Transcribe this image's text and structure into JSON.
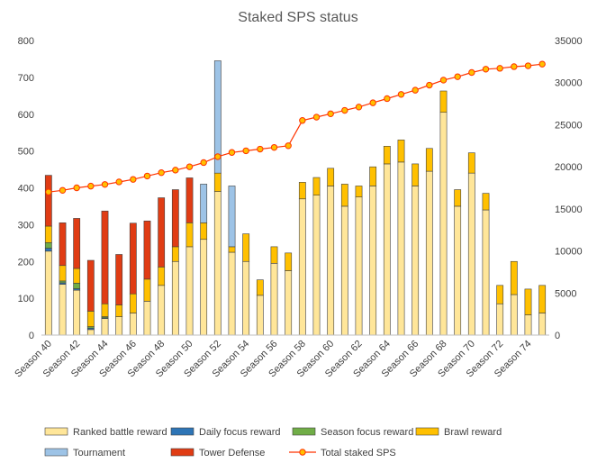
{
  "chart_data": {
    "type": "bar",
    "title": "Staked SPS status",
    "stacked": true,
    "categories": [
      "Season 40",
      "Season 41",
      "Season 42",
      "Season 43",
      "Season 44",
      "Season 45",
      "Season 46",
      "Season 47",
      "Season 48",
      "Season 49",
      "Season 50",
      "Season 51",
      "Season 52",
      "Season 53",
      "Season 54",
      "Season 55",
      "Season 56",
      "Season 57",
      "Season 58",
      "Season 59",
      "Season 60",
      "Season 61",
      "Season 62",
      "Season 63",
      "Season 64",
      "Season 65",
      "Season 66",
      "Season 67",
      "Season 68",
      "Season 69",
      "Season 70",
      "Season 71",
      "Season 72",
      "Season 73",
      "Season 74",
      "Season 75"
    ],
    "x_tick_labels": [
      "Season 40",
      "Season 42",
      "Season 44",
      "Season 46",
      "Season 48",
      "Season 50",
      "Season 52",
      "Season 54",
      "Season 56",
      "Season 58",
      "Season 60",
      "Season 62",
      "Season 64",
      "Season 66",
      "Season 68",
      "Season 70",
      "Season 72",
      "Season 74"
    ],
    "y_left": {
      "min": 0,
      "max": 800,
      "step": 100,
      "ticks": [
        "0",
        "100",
        "200",
        "300",
        "400",
        "500",
        "600",
        "700",
        "800"
      ]
    },
    "y_right": {
      "min": 0,
      "max": 35000,
      "step": 5000,
      "ticks": [
        "0",
        "5000",
        "10000",
        "15000",
        "20000",
        "25000",
        "30000",
        "35000"
      ]
    },
    "grid": false,
    "legend_position": "bottom",
    "series": [
      {
        "name": "Ranked battle reward",
        "color": "#FFE699",
        "axis": "left",
        "values": [
          228,
          138,
          122,
          15,
          45,
          50,
          60,
          92,
          135,
          200,
          240,
          260,
          390,
          225,
          200,
          108,
          195,
          175,
          370,
          380,
          405,
          350,
          375,
          405,
          465,
          470,
          405,
          445,
          605,
          350,
          440,
          340,
          85,
          110,
          55,
          60
        ]
      },
      {
        "name": "Daily focus reward",
        "color": "#2E75B6",
        "axis": "left",
        "values": [
          8,
          4,
          4,
          4,
          2,
          0,
          0,
          0,
          0,
          0,
          0,
          0,
          0,
          0,
          0,
          0,
          0,
          0,
          0,
          0,
          0,
          0,
          0,
          0,
          0,
          0,
          0,
          0,
          0,
          0,
          0,
          0,
          0,
          0,
          0,
          0
        ]
      },
      {
        "name": "Season focus reward",
        "color": "#70AD47",
        "axis": "left",
        "values": [
          15,
          5,
          15,
          4,
          3,
          0,
          0,
          0,
          0,
          0,
          0,
          0,
          0,
          0,
          0,
          0,
          0,
          0,
          0,
          0,
          0,
          0,
          0,
          0,
          0,
          0,
          0,
          0,
          0,
          0,
          0,
          0,
          0,
          0,
          0,
          0
        ]
      },
      {
        "name": "Brawl reward",
        "color": "#FFC000",
        "axis": "left",
        "values": [
          45,
          42,
          40,
          42,
          35,
          32,
          52,
          60,
          50,
          40,
          65,
          45,
          50,
          15,
          75,
          42,
          45,
          48,
          45,
          48,
          48,
          60,
          30,
          52,
          48,
          60,
          60,
          62,
          58,
          45,
          55,
          45,
          50,
          90,
          70,
          75
        ]
      },
      {
        "name": "Tournament",
        "color": "#9DC3E6",
        "axis": "left",
        "values": [
          0,
          0,
          0,
          0,
          0,
          0,
          0,
          0,
          0,
          0,
          0,
          105,
          305,
          165,
          0,
          0,
          0,
          0,
          0,
          0,
          0,
          0,
          0,
          0,
          0,
          0,
          0,
          0,
          0,
          0,
          0,
          0,
          0,
          0,
          0,
          0
        ]
      },
      {
        "name": "Tower Defense",
        "color": "#E03C14",
        "axis": "left",
        "values": [
          138,
          116,
          136,
          138,
          252,
          137,
          192,
          158,
          188,
          155,
          122,
          0,
          0,
          0,
          0,
          0,
          0,
          0,
          0,
          0,
          0,
          0,
          0,
          0,
          0,
          0,
          0,
          0,
          0,
          0,
          0,
          0,
          0,
          0,
          0,
          0
        ]
      }
    ],
    "line_series": {
      "name": "Total staked SPS",
      "color": "#FF3300",
      "marker_color": "#FFC000",
      "axis": "right",
      "values": [
        17000,
        17200,
        17500,
        17700,
        17900,
        18200,
        18500,
        18900,
        19300,
        19600,
        20000,
        20500,
        21200,
        21700,
        21900,
        22100,
        22300,
        22500,
        25500,
        25900,
        26300,
        26700,
        27100,
        27600,
        28100,
        28600,
        29100,
        29700,
        30300,
        30700,
        31200,
        31600,
        31700,
        31900,
        32000,
        32200
      ]
    }
  }
}
